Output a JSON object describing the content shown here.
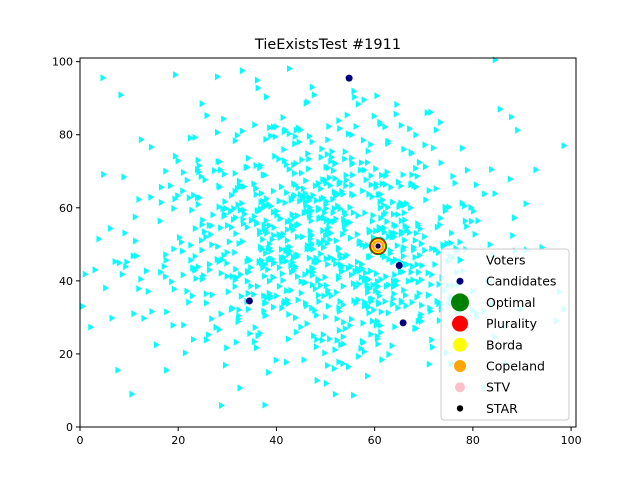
{
  "chart_data": {
    "type": "scatter",
    "title": "TieExistsTest #1911",
    "xlabel": "",
    "ylabel": "",
    "xlim": [
      0,
      101
    ],
    "ylim": [
      0,
      101
    ],
    "xticks": [
      0,
      20,
      40,
      60,
      80,
      100
    ],
    "yticks": [
      0,
      20,
      40,
      60,
      80,
      100
    ],
    "grid": false,
    "legend_position": "lower-right",
    "voter_cloud": {
      "center": [
        48,
        50
      ],
      "spread": [
        17,
        18
      ],
      "count": 1000
    },
    "series": [
      {
        "name": "Voters",
        "marker": "triangle-right",
        "color": "#00ffff",
        "sample_points": [
          [
            84.5,
            100.5
          ],
          [
            98.5,
            77
          ],
          [
            3,
            43
          ],
          [
            0.5,
            33
          ],
          [
            10.5,
            9
          ],
          [
            97,
            29
          ],
          [
            85.5,
            87
          ],
          [
            33,
            97.5
          ]
        ]
      },
      {
        "name": "Candidates",
        "marker": "circle",
        "color": "#00007f",
        "points": [
          [
            54.8,
            95.5
          ],
          [
            65.0,
            44.2
          ],
          [
            34.5,
            34.5
          ],
          [
            65.8,
            28.5
          ],
          [
            60.7,
            49.5
          ]
        ]
      },
      {
        "name": "Optimal",
        "marker": "circle",
        "color": "#008000",
        "points": [
          [
            60.7,
            49.5
          ]
        ]
      },
      {
        "name": "Plurality",
        "marker": "circle",
        "color": "#ff0000",
        "points": [
          [
            60.7,
            49.5
          ]
        ]
      },
      {
        "name": "Borda",
        "marker": "circle",
        "color": "#ffff00",
        "points": [
          [
            60.7,
            49.5
          ]
        ]
      },
      {
        "name": "Copeland",
        "marker": "circle",
        "color": "#ffa500",
        "points": [
          [
            60.7,
            49.5
          ]
        ]
      },
      {
        "name": "STV",
        "marker": "circle",
        "color": "#ffc0cb",
        "points": [
          [
            60.7,
            49.5
          ]
        ]
      },
      {
        "name": "STAR",
        "marker": "circle",
        "color": "#000000",
        "points": [
          [
            60.7,
            49.5
          ]
        ]
      }
    ]
  }
}
